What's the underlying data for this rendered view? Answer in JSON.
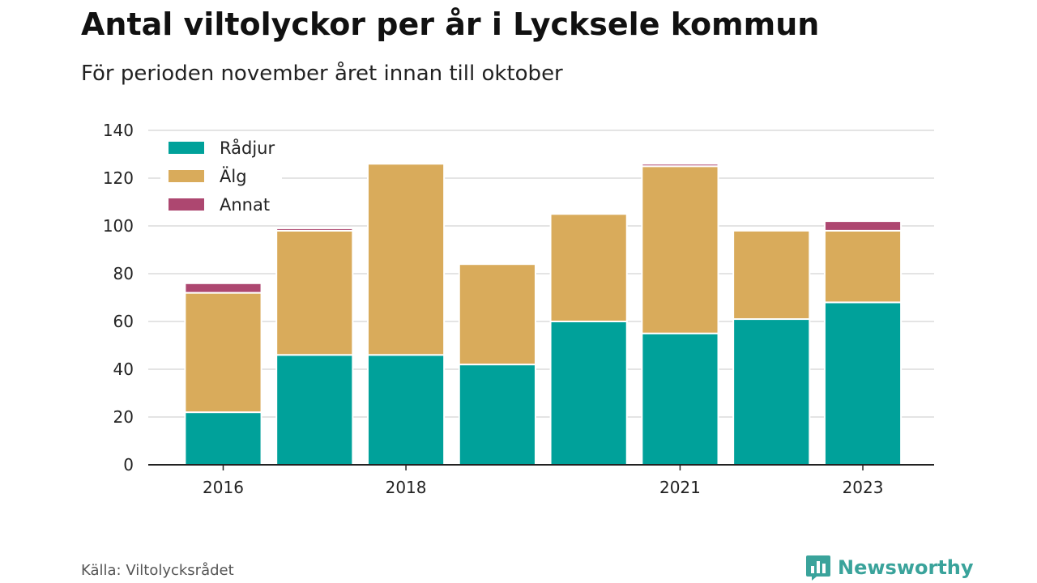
{
  "title": "Antal viltolyckor per år i Lycksele kommun",
  "subtitle": "För perioden november året innan till oktober",
  "source": "Källa: Viltolycksrådet",
  "brand": {
    "name": "Newsworthy",
    "icon": "newsworthy-logo-icon",
    "color": "#3aa39b"
  },
  "chart_data": {
    "type": "bar",
    "stacked": true,
    "categories": [
      "2016",
      "2017",
      "2018",
      "2019",
      "2020",
      "2021",
      "2022",
      "2023"
    ],
    "x_tick_labels": [
      "2016",
      "",
      "2018",
      "",
      "",
      "2021",
      "",
      "2023"
    ],
    "series": [
      {
        "name": "Rådjur",
        "color": "#00a19a",
        "values": [
          22,
          46,
          46,
          42,
          60,
          55,
          61,
          68
        ]
      },
      {
        "name": "Älg",
        "color": "#d9ab5b",
        "values": [
          50,
          52,
          80,
          42,
          45,
          70,
          37,
          30
        ]
      },
      {
        "name": "Annat",
        "color": "#ad4770",
        "values": [
          4,
          1,
          0,
          0,
          0,
          1,
          0,
          4
        ]
      }
    ],
    "ylim": [
      0,
      140
    ],
    "yticks": [
      0,
      20,
      40,
      60,
      80,
      100,
      120,
      140
    ],
    "grid": true,
    "legend": "top-left"
  }
}
